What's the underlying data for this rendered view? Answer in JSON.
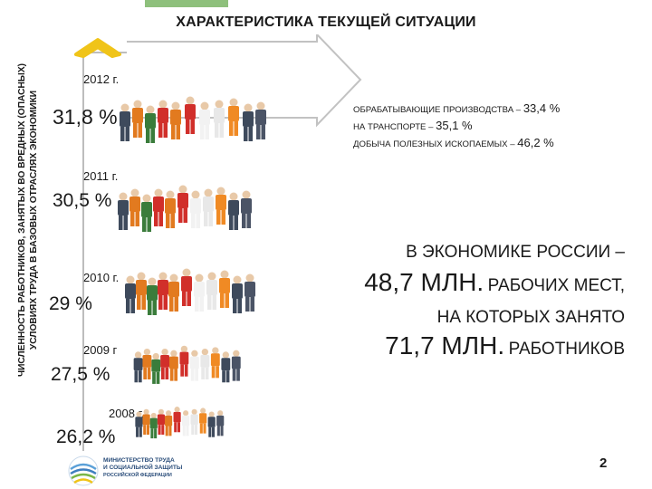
{
  "title": "ХАРАКТЕРИСТИКА ТЕКУЩЕЙ СИТУАЦИИ",
  "vertical_label": {
    "line1": "ЧИСЛЕННОСТЬ РАБОТНИКОВ, ЗАНЯТЫХ ВО ВРЕДНЫХ (ОПАСНЫХ)",
    "line2": "УСЛОВИЯХ ТРУДА В БАЗОВЫХ ОТРАСЛЯХ ЭКОНОМИКИ"
  },
  "years": [
    {
      "year": "2012 г.",
      "percent": "31,8 %"
    },
    {
      "year": "2011 г.",
      "percent": "30,5 %"
    },
    {
      "year": "2010 г.",
      "percent": "29 %"
    },
    {
      "year": "2009 г",
      "percent": "27,5 %"
    },
    {
      "year": "2008 г.",
      "percent": "26,2 %"
    }
  ],
  "sectors": [
    {
      "label": "ОБРАБАТЫВАЮЩИЕ ПРОИЗВОДСТВА –",
      "value": "33,4 %"
    },
    {
      "label": "НА ТРАНСПОРТЕ –",
      "value": "35,1 %"
    },
    {
      "label": "ДОБЫЧА ПОЛЕЗНЫХ ИСКОПАЕМЫХ –",
      "value": "46,2 %"
    }
  ],
  "economy": {
    "line1": "В ЭКОНОМИКЕ РОССИИ –",
    "jobs_number": "48,7 МЛН.",
    "jobs_text": "РАБОЧИХ МЕСТ,",
    "line3": "НА КОТОРЫХ ЗАНЯТО",
    "workers_number": "71,7 МЛН.",
    "workers_text": "РАБОТНИКОВ"
  },
  "logo": {
    "line1": "МИНИСТЕРСТВО ТРУДА",
    "line2": "И СОЦИАЛЬНОЙ ЗАЩИТЫ",
    "line3": "РОССИЙСКОЙ ФЕДЕРАЦИИ"
  },
  "page_number": "2",
  "colors": {
    "accent_green": "#8ec07c",
    "arrow_yellow": "#f0c419",
    "arrow_outline": "#b0b0b0"
  }
}
